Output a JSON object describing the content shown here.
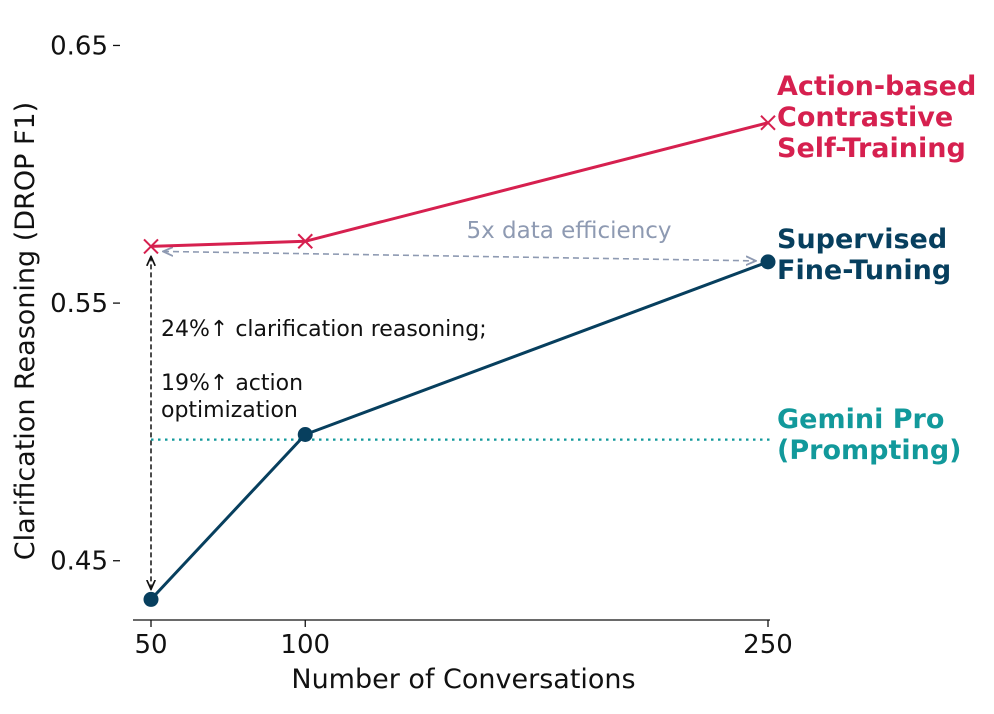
{
  "chart_data": {
    "type": "line",
    "xlabel": "Number of Conversations",
    "ylabel": "Clarification Reasoning (DROP F1)",
    "x_ticks": [
      50,
      100,
      250
    ],
    "x_tick_labels": [
      "50",
      "100",
      "250"
    ],
    "y_ticks": [
      0.45,
      0.55,
      0.65
    ],
    "y_tick_labels": [
      "0.45",
      "0.55",
      "0.65"
    ],
    "xlim": [
      50,
      250
    ],
    "ylim": [
      0.427,
      0.656
    ],
    "grid": false,
    "series": [
      {
        "name_lines": [
          "Action-based",
          "Contrastive",
          "Self-Training"
        ],
        "color": "#d6204f",
        "marker": "x",
        "x": [
          50,
          100,
          250
        ],
        "y": [
          0.572,
          0.574,
          0.62
        ]
      },
      {
        "name_lines": [
          "Supervised",
          "Fine-Tuning"
        ],
        "color": "#073f5e",
        "marker": "circle",
        "x": [
          50,
          100,
          250
        ],
        "y": [
          0.435,
          0.499,
          0.566
        ]
      },
      {
        "name_lines": [
          "Gemini Pro",
          "(Prompting)"
        ],
        "color": "#12999b",
        "marker": "none",
        "style": "dotted",
        "y": 0.497
      }
    ],
    "annotations": {
      "efficiency": {
        "text": "5x data efficiency",
        "color": "#8e9ab2"
      },
      "improvement_lines": [
        "24%↑ clarification reasoning;",
        "",
        "19%↑ action",
        "optimization"
      ]
    }
  }
}
